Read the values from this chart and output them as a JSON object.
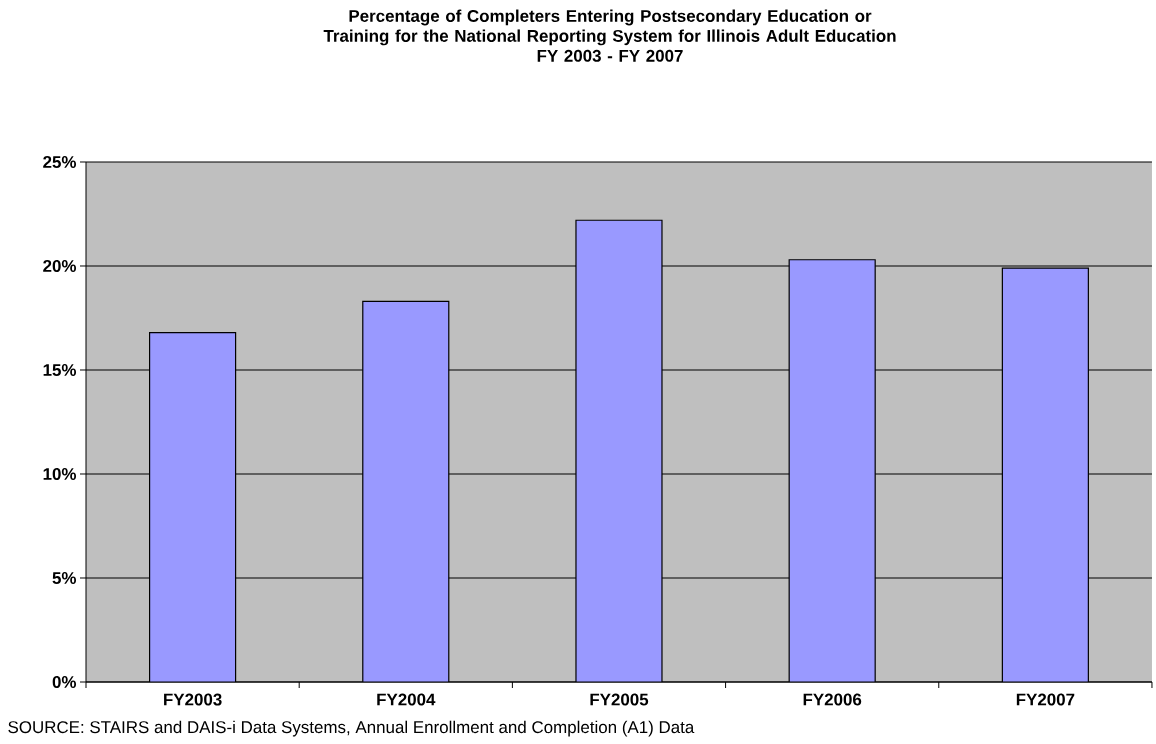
{
  "chart_data": {
    "type": "bar",
    "title": "Percentage of Completers Entering Postsecondary Education or Training for the National Reporting System for Illinois Adult Education",
    "subtitle": "FY 2003 - FY 2007",
    "categories": [
      "FY2003",
      "FY2004",
      "FY2005",
      "FY2006",
      "FY2007"
    ],
    "values": [
      16.8,
      18.3,
      22.2,
      20.3,
      19.9
    ],
    "color": "#9999ff",
    "ylim": [
      0,
      25
    ],
    "yticks": [
      {
        "value": 0,
        "label": "0%"
      },
      {
        "value": 5,
        "label": "5%"
      },
      {
        "value": 10,
        "label": "10%"
      },
      {
        "value": 15,
        "label": "15%"
      },
      {
        "value": 20,
        "label": "20%"
      },
      {
        "value": 25,
        "label": "25%"
      }
    ],
    "grid": "y",
    "annotations": [
      "SOURCE: STAIRS and DAIS-i Data Systems, Annual Enrollment and Completion (A1) Data"
    ]
  }
}
